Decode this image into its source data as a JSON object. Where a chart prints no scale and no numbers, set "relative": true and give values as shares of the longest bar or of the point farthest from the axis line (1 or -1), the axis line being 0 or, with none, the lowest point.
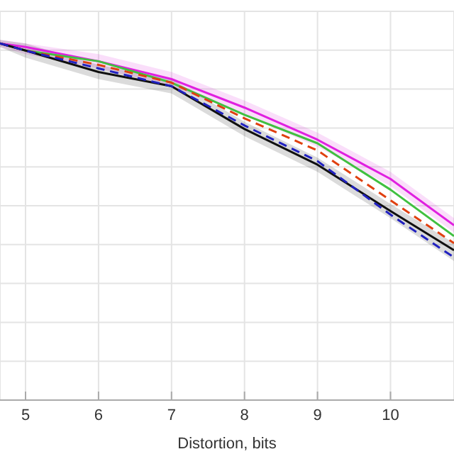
{
  "chart_data": {
    "type": "line",
    "xlabel": "Distortion, bits",
    "relative": true,
    "grid": true,
    "xlim": [
      4.65,
      10.87
    ],
    "xticks": [
      5,
      6,
      7,
      8,
      9,
      10
    ],
    "x": [
      4.65,
      5,
      6,
      7,
      8,
      9,
      10,
      10.87
    ],
    "series": [
      {
        "color": "#e020e0",
        "line_style": "solid",
        "values": [
          1.0,
          0.99,
          0.95,
          0.9,
          0.82,
          0.73,
          0.62,
          0.49
        ],
        "lower": [
          0.99,
          0.97,
          0.93,
          0.88,
          0.8,
          0.71,
          0.6,
          0.47
        ],
        "upper": [
          1.01,
          1.0,
          0.97,
          0.92,
          0.84,
          0.75,
          0.64,
          0.51
        ]
      },
      {
        "color": "#40c040",
        "line_style": "solid",
        "values": [
          1.0,
          0.98,
          0.95,
          0.89,
          0.8,
          0.72,
          0.59,
          0.46
        ]
      },
      {
        "color": "#e04010",
        "line_style": "dashed",
        "values": [
          1.0,
          0.98,
          0.94,
          0.89,
          0.79,
          0.7,
          0.56,
          0.44
        ]
      },
      {
        "color": "#101010",
        "line_style": "solid",
        "values": [
          1.0,
          0.98,
          0.92,
          0.88,
          0.76,
          0.66,
          0.53,
          0.42
        ],
        "lower": [
          0.99,
          0.96,
          0.9,
          0.86,
          0.74,
          0.64,
          0.51,
          0.39
        ],
        "upper": [
          1.01,
          1.0,
          0.94,
          0.9,
          0.78,
          0.68,
          0.55,
          0.44
        ]
      },
      {
        "color": "#2020c0",
        "line_style": "dashed",
        "values": [
          1.0,
          0.98,
          0.93,
          0.88,
          0.77,
          0.67,
          0.52,
          0.4
        ]
      }
    ]
  }
}
